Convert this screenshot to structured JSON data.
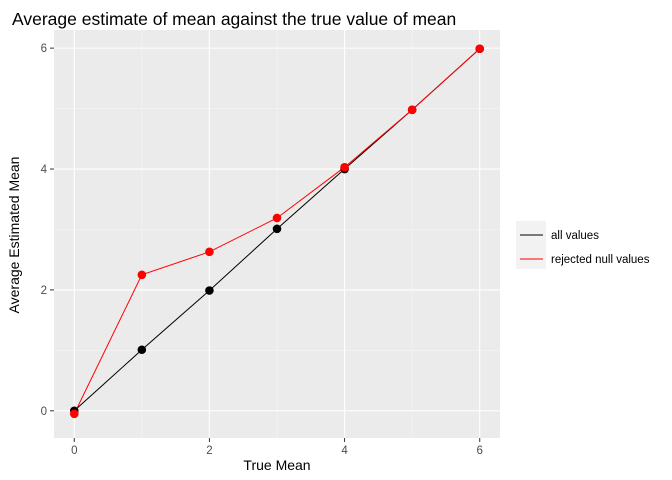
{
  "chart_data": {
    "type": "line",
    "title": "Average estimate of mean against the true value of mean",
    "xlabel": "True Mean",
    "ylabel": "Average Estimated Mean",
    "xlim": [
      -0.3,
      6.3
    ],
    "ylim": [
      -0.45,
      6.3
    ],
    "xticks": [
      0,
      2,
      4,
      6
    ],
    "yticks": [
      0,
      2,
      4,
      6
    ],
    "xtick_labels": [
      "0",
      "2",
      "4",
      "6"
    ],
    "ytick_labels": [
      "0",
      "2",
      "4",
      "6"
    ],
    "grid": true,
    "legend_position": "right",
    "series": [
      {
        "name": "all values",
        "color": "#000000",
        "x": [
          0,
          1,
          2,
          3,
          4,
          5,
          6
        ],
        "y": [
          0.0,
          1.01,
          1.99,
          3.01,
          4.0,
          4.98,
          5.99
        ]
      },
      {
        "name": "rejected null values",
        "color": "#ff0000",
        "x": [
          0,
          1,
          2,
          3,
          4,
          5,
          6
        ],
        "y": [
          -0.05,
          2.25,
          2.63,
          3.19,
          4.03,
          4.98,
          5.99
        ]
      }
    ]
  }
}
